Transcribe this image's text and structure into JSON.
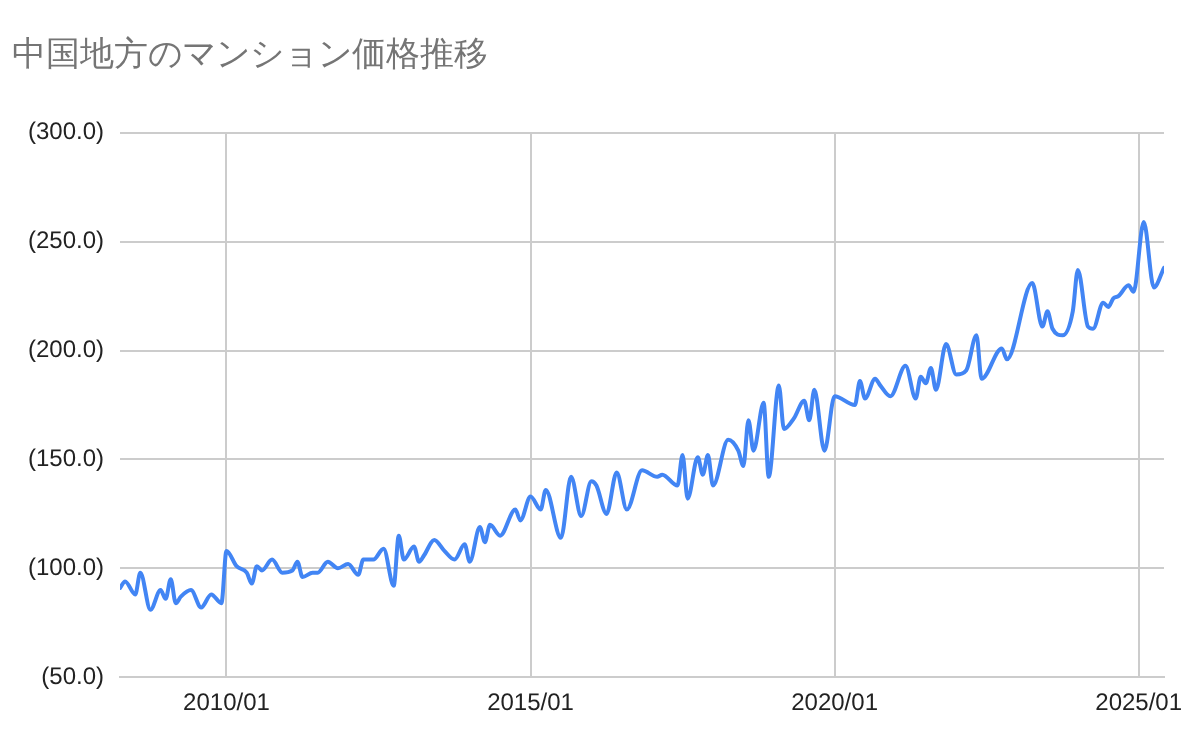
{
  "chart_data": {
    "type": "line",
    "title": "中国地方のマンション価格推移",
    "x": [
      "2008-04",
      "2008-05",
      "2008-07",
      "2008-08",
      "2008-10",
      "2008-12",
      "2009-01",
      "2009-02",
      "2009-03",
      "2009-04",
      "2009-06",
      "2009-08",
      "2009-10",
      "2009-12",
      "2010-01",
      "2010-03",
      "2010-05",
      "2010-06",
      "2010-07",
      "2010-08",
      "2010-10",
      "2010-12",
      "2011-02",
      "2011-03",
      "2011-04",
      "2011-06",
      "2011-07",
      "2011-09",
      "2011-11",
      "2012-01",
      "2012-03",
      "2012-04",
      "2012-06",
      "2012-08",
      "2012-10",
      "2012-11",
      "2012-12",
      "2013-02",
      "2013-03",
      "2013-04",
      "2013-06",
      "2013-08",
      "2013-10",
      "2013-12",
      "2014-01",
      "2014-03",
      "2014-04",
      "2014-05",
      "2014-07",
      "2014-10",
      "2014-11",
      "2015-01",
      "2015-03",
      "2015-04",
      "2015-07",
      "2015-09",
      "2015-11",
      "2016-01",
      "2016-02",
      "2016-04",
      "2016-06",
      "2016-08",
      "2016-11",
      "2017-02",
      "2017-03",
      "2017-06",
      "2017-07",
      "2017-08",
      "2017-10",
      "2017-11",
      "2017-12",
      "2018-01",
      "2018-04",
      "2018-06",
      "2018-07",
      "2018-08",
      "2018-09",
      "2018-11",
      "2018-12",
      "2019-02",
      "2019-03",
      "2019-05",
      "2019-07",
      "2019-08",
      "2019-09",
      "2019-11",
      "2020-01",
      "2020-05",
      "2020-06",
      "2020-07",
      "2020-09",
      "2020-10",
      "2020-12",
      "2021-03",
      "2021-05",
      "2021-06",
      "2021-07",
      "2021-08",
      "2021-09",
      "2021-11",
      "2022-01",
      "2022-03",
      "2022-05",
      "2022-06",
      "2022-10",
      "2022-11",
      "2023-04",
      "2023-06",
      "2023-07",
      "2023-08",
      "2023-10",
      "2023-12",
      "2024-01",
      "2024-03",
      "2024-04",
      "2024-06",
      "2024-07",
      "2024-08",
      "2024-09",
      "2024-11",
      "2024-12",
      "2025-02",
      "2025-04",
      "2025-06"
    ],
    "series": [
      {
        "color": "#4285f4",
        "values": [
          91,
          94,
          88,
          98,
          81,
          90,
          86,
          95,
          84,
          87,
          90,
          82,
          88,
          84,
          108,
          101,
          98,
          93,
          101,
          99,
          104,
          98,
          99,
          103,
          96,
          98,
          98,
          103,
          100,
          102,
          97,
          104,
          104,
          109,
          92,
          115,
          104,
          110,
          103,
          106,
          113,
          108,
          104,
          111,
          103,
          119,
          112,
          120,
          115,
          127,
          122,
          133,
          127,
          136,
          114,
          142,
          124,
          140,
          138,
          125,
          144,
          127,
          145,
          142,
          143,
          138,
          152,
          132,
          151,
          143,
          152,
          138,
          159,
          154,
          147,
          168,
          154,
          176,
          142,
          184,
          164,
          169,
          177,
          168,
          182,
          154,
          179,
          175,
          186,
          178,
          187,
          184,
          179,
          193,
          178,
          188,
          185,
          192,
          182,
          203,
          189,
          191,
          207,
          187,
          201,
          196,
          231,
          211,
          218,
          210,
          207,
          218,
          237,
          211,
          210,
          222,
          220,
          224,
          225,
          230,
          227,
          259,
          229,
          238
        ]
      }
    ],
    "xlim": [
      "2008-04",
      "2025-06"
    ],
    "xticks": [
      {
        "value": "2010-01",
        "label": "2010/01"
      },
      {
        "value": "2015-01",
        "label": "2015/01"
      },
      {
        "value": "2020-01",
        "label": "2020/01"
      },
      {
        "value": "2025-01",
        "label": "2025/01"
      }
    ],
    "ylim": [
      50,
      300
    ],
    "yticks": [
      {
        "value": 50,
        "label": "(50.0)"
      },
      {
        "value": 100,
        "label": "(100.0)"
      },
      {
        "value": 150,
        "label": "(150.0)"
      },
      {
        "value": 200,
        "label": "(200.0)"
      },
      {
        "value": 250,
        "label": "(250.0)"
      },
      {
        "value": 300,
        "label": "(300.0)"
      }
    ],
    "grid": true,
    "legend": false,
    "marker": "none",
    "line_style": "solid"
  }
}
